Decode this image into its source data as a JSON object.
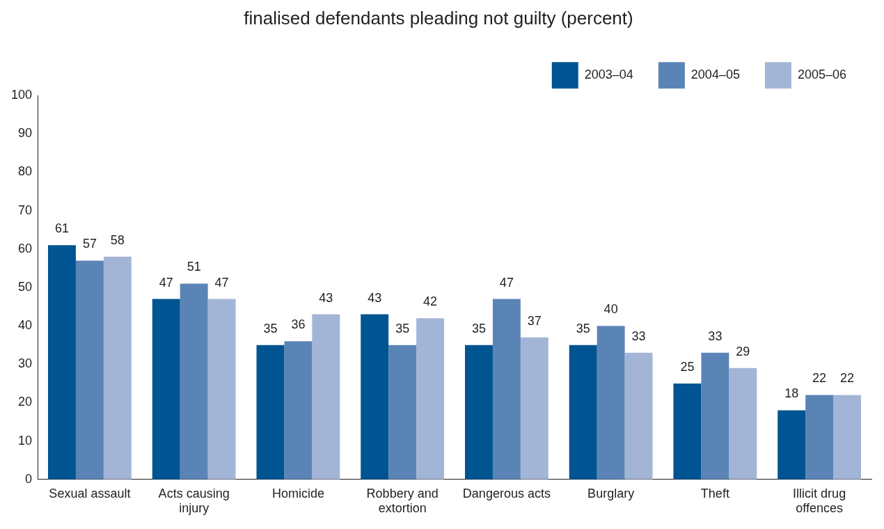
{
  "chart_data": {
    "type": "bar",
    "title": "finalised defendants pleading not guilty (percent)",
    "categories": [
      "Sexual assault",
      "Acts causing injury",
      "Homicide",
      "Robbery and extortion",
      "Dangerous acts",
      "Burglary",
      "Theft",
      "Illicit drug offences"
    ],
    "series": [
      {
        "name": "2003–04",
        "color": "#005492",
        "values": [
          61,
          47,
          35,
          43,
          35,
          35,
          25,
          18
        ]
      },
      {
        "name": "2004–05",
        "color": "#5b84b6",
        "values": [
          57,
          51,
          36,
          35,
          47,
          40,
          33,
          22
        ]
      },
      {
        "name": "2005–06",
        "color": "#a3b5d6",
        "values": [
          58,
          47,
          43,
          42,
          37,
          33,
          29,
          22
        ]
      }
    ],
    "ylim": [
      0,
      100
    ],
    "yticks": [
      0,
      10,
      20,
      30,
      40,
      50,
      60,
      70,
      80,
      90,
      100
    ],
    "grid": false,
    "legend": "top right",
    "data_labels": true
  }
}
